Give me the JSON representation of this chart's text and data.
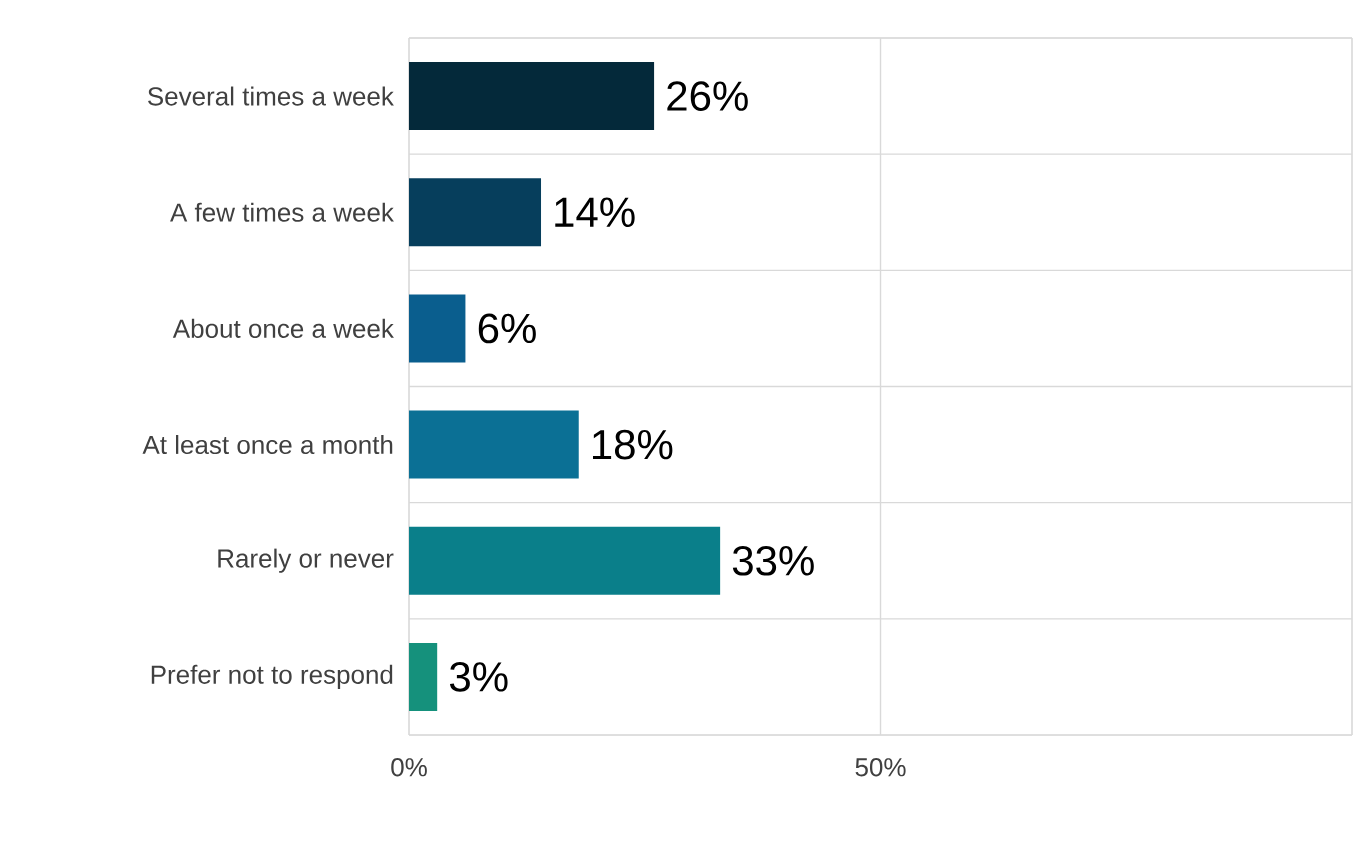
{
  "chart_data": {
    "type": "bar",
    "orientation": "horizontal",
    "categories": [
      "Several times a week",
      "A few times a week",
      "About once a week",
      "At least once a month",
      "Rarely or never",
      "Prefer not to respond"
    ],
    "values": [
      26,
      14,
      6,
      18,
      33,
      3
    ],
    "colors": [
      "#04293a",
      "#063e5c",
      "#0a5e8e",
      "#0b7095",
      "#0a7f8a",
      "#15917c"
    ],
    "value_labels": [
      "26%",
      "14%",
      "6%",
      "18%",
      "33%",
      "3%"
    ],
    "xlim": [
      0,
      100
    ],
    "xticks": [
      {
        "value": 0,
        "label": "0%"
      },
      {
        "value": 50,
        "label": "50%"
      },
      {
        "value": 100,
        "label": null
      }
    ],
    "grid": true
  }
}
